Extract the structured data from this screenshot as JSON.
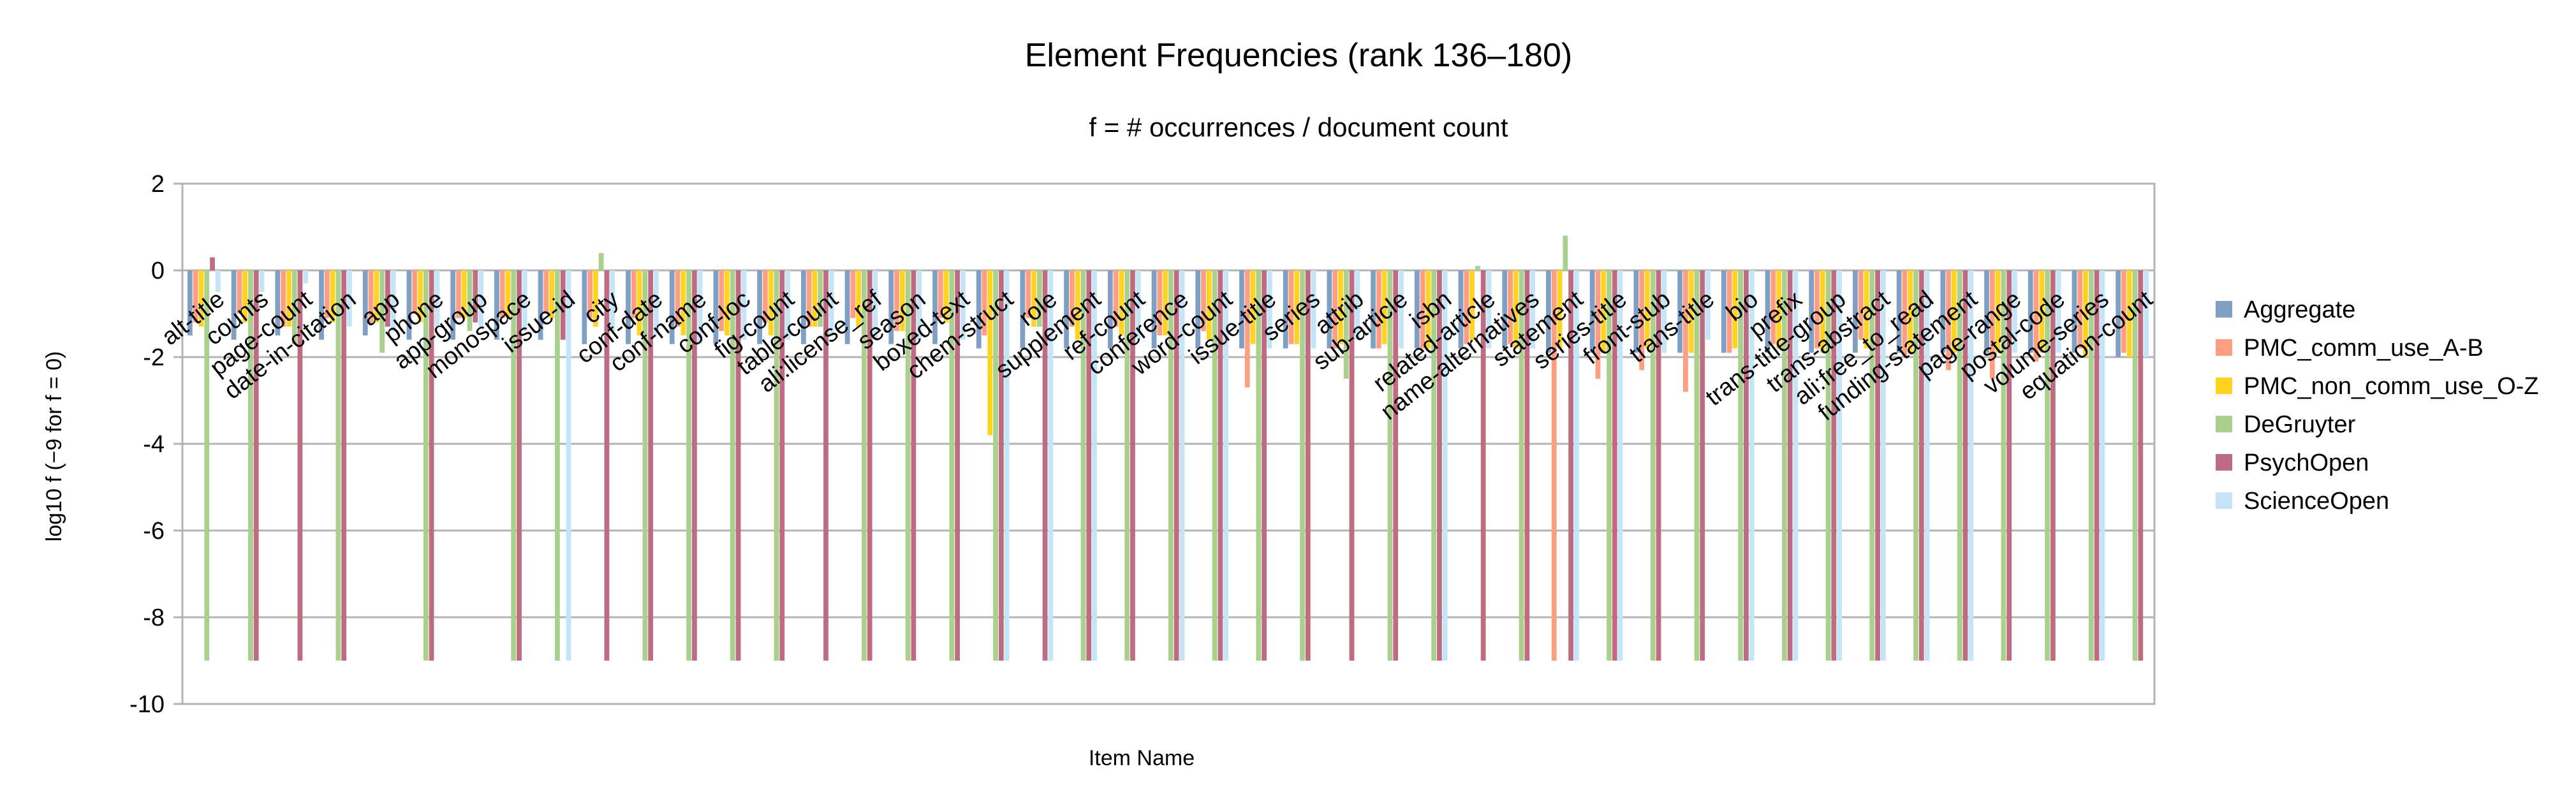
{
  "chart_data": {
    "type": "bar",
    "title": "Element Frequencies (rank 136–180)",
    "subtitle": "f = # occurrences / document count",
    "xlabel": "Item Name",
    "ylabel": "log10  f  (−9 for f = 0)",
    "ylim": [
      -10,
      2
    ],
    "yticks": [
      "2",
      "0",
      "-2",
      "-4",
      "-6",
      "-8",
      "-10"
    ],
    "grid": true,
    "legend_position": "right",
    "categories": [
      "alt-title",
      "counts",
      "page-count",
      "date-in-citation",
      "app",
      "phone",
      "app-group",
      "monospace",
      "issue-id",
      "city",
      "conf-date",
      "conf-name",
      "conf-loc",
      "fig-count",
      "table-count",
      "ali:license_ref",
      "season",
      "boxed-text",
      "chem-struct",
      "role",
      "supplement",
      "ref-count",
      "conference",
      "word-count",
      "issue-title",
      "series",
      "attrib",
      "sub-article",
      "isbn",
      "related-article",
      "name-alternatives",
      "statement",
      "series-title",
      "front-stub",
      "trans-title",
      "bio",
      "prefix",
      "trans-title-group",
      "trans-abstract",
      "ali:free_to_read",
      "funding-statement",
      "page-range",
      "postal-code",
      "volume-series",
      "equation-count"
    ],
    "series": [
      {
        "name": "Aggregate",
        "color": "#7f9fc4",
        "values": [
          -1.5,
          -1.6,
          -1.5,
          -1.6,
          -1.5,
          -1.6,
          -1.6,
          -1.6,
          -1.6,
          -1.7,
          -1.7,
          -1.7,
          -1.7,
          -1.7,
          -1.7,
          -1.7,
          -1.7,
          -1.7,
          -1.8,
          -1.8,
          -1.8,
          -1.8,
          -1.8,
          -1.8,
          -1.8,
          -1.8,
          -1.8,
          -1.8,
          -1.8,
          -1.8,
          -1.8,
          -1.9,
          -1.9,
          -1.9,
          -1.9,
          -1.9,
          -1.9,
          -1.9,
          -1.9,
          -1.9,
          -1.9,
          -1.9,
          -1.9,
          -1.9,
          -2.0
        ]
      },
      {
        "name": "PMC_comm_use_A-B",
        "color": "#ff9e80",
        "values": [
          -1.2,
          -1.0,
          -1.3,
          -1.1,
          -1.2,
          -1.0,
          -1.1,
          -1.1,
          -1.0,
          -1.1,
          -1.1,
          -1.3,
          -1.4,
          -1.2,
          -1.3,
          -1.1,
          -1.4,
          -1.1,
          -1.5,
          -1.1,
          -1.3,
          -1.3,
          -1.5,
          -1.4,
          -2.7,
          -1.7,
          -1.8,
          -1.8,
          -1.8,
          -1.7,
          -1.7,
          -9.0,
          -2.5,
          -2.3,
          -2.8,
          -1.9,
          -1.7,
          -1.8,
          -1.6,
          -2.0,
          -2.3,
          -2.5,
          -2.1,
          -1.8,
          -1.9
        ]
      },
      {
        "name": "PMC_non_comm_use_O-Z",
        "color": "#ffd320",
        "values": [
          -1.3,
          -1.2,
          -1.3,
          -1.2,
          -1.2,
          -1.2,
          -1.1,
          -1.1,
          -1.1,
          -1.3,
          -1.5,
          -1.5,
          -1.5,
          -1.5,
          -1.3,
          -1.3,
          -1.4,
          -1.2,
          -3.8,
          -1.3,
          -1.6,
          -1.5,
          -1.5,
          -1.6,
          -1.7,
          -1.7,
          -1.7,
          -1.7,
          -1.8,
          -1.6,
          -1.8,
          -1.8,
          -1.9,
          -1.8,
          -1.9,
          -1.8,
          -1.8,
          -1.9,
          -1.8,
          -1.9,
          -1.9,
          -1.9,
          -1.9,
          -2.0,
          -2.0
        ]
      },
      {
        "name": "DeGruyter",
        "color": "#aad08e",
        "values": [
          -9.0,
          -9.0,
          -1.7,
          -9.0,
          -1.9,
          -9.0,
          -1.4,
          -9.0,
          -9.0,
          0.4,
          -9.0,
          -9.0,
          -9.0,
          -9.0,
          -1.3,
          -9.0,
          -9.0,
          -9.0,
          -9.0,
          -1.3,
          -9.0,
          -9.0,
          -9.0,
          -9.0,
          -9.0,
          -9.0,
          -2.5,
          -9.0,
          -9.0,
          0.1,
          -9.0,
          0.8,
          -9.0,
          -9.0,
          -9.0,
          -9.0,
          -9.0,
          -9.0,
          -9.0,
          -9.0,
          -9.0,
          -9.0,
          -9.0,
          -9.0,
          -9.0
        ]
      },
      {
        "name": "PsychOpen",
        "color": "#bf6c82",
        "values": [
          0.3,
          -9.0,
          -9.0,
          -9.0,
          -1.3,
          -9.0,
          -1.2,
          -9.0,
          -1.6,
          -9.0,
          -9.0,
          -9.0,
          -9.0,
          -9.0,
          -9.0,
          -9.0,
          -9.0,
          -9.0,
          -9.0,
          -9.0,
          -9.0,
          -9.0,
          -9.0,
          -9.0,
          -9.0,
          -9.0,
          -9.0,
          -9.0,
          -9.0,
          -9.0,
          -9.0,
          -9.0,
          -9.0,
          -9.0,
          -9.0,
          -9.0,
          -9.0,
          -9.0,
          -9.0,
          -9.0,
          -9.0,
          -9.0,
          -9.0,
          -9.0,
          -9.0
        ]
      },
      {
        "name": "ScienceOpen",
        "color": "#c4e4f8",
        "values": [
          -0.5,
          -0.5,
          -0.3,
          -1.3,
          -1.4,
          -1.3,
          -1.3,
          -1.4,
          -9.0,
          -1.4,
          -1.5,
          -1.7,
          -1.6,
          -1.6,
          -1.5,
          -1.6,
          -1.6,
          -1.6,
          -9.0,
          -9.0,
          -9.0,
          -1.6,
          -9.0,
          -9.0,
          -1.8,
          -1.8,
          -1.6,
          -1.8,
          -9.0,
          -1.8,
          -1.8,
          -9.0,
          -9.0,
          -1.9,
          -1.6,
          -9.0,
          -9.0,
          -9.0,
          -9.0,
          -9.0,
          -9.0,
          -1.9,
          -1.9,
          -9.0,
          -2.0
        ]
      }
    ]
  }
}
